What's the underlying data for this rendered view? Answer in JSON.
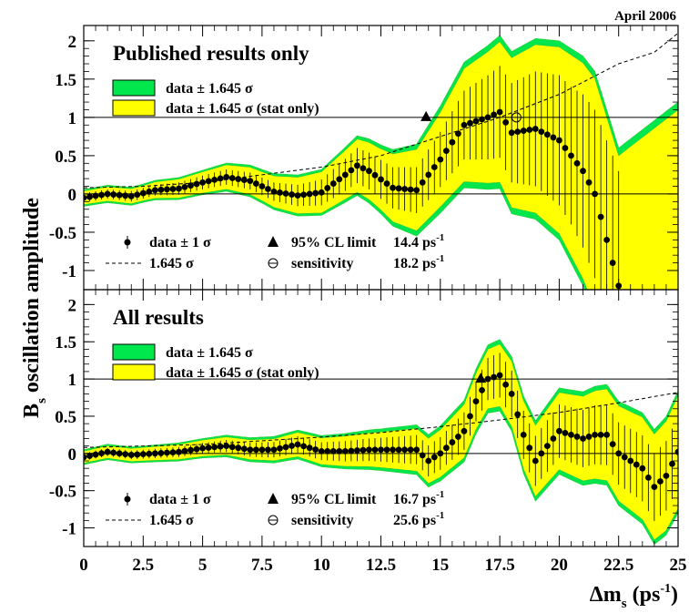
{
  "date_label": "April 2006",
  "y_axis_label": "B",
  "y_axis_label_sub": "s",
  "y_axis_label_rest": " oscillation amplitude",
  "x_axis_label": "Δm",
  "x_axis_label_sub": "s",
  "x_axis_label_unit": " (ps",
  "x_axis_label_sup": "-1",
  "x_axis_label_close": ")",
  "colors": {
    "band_total": "#00e64d",
    "band_stat": "#ffff00",
    "band_edge": "#33cc33",
    "points": "#000000"
  },
  "chart_data": [
    {
      "type": "line",
      "panel": "top",
      "title": "Published results only",
      "xlim": [
        0,
        25
      ],
      "ylim": [
        -1.25,
        2.2
      ],
      "x_ticks": [
        "0",
        "2.5",
        "5",
        "7.5",
        "10",
        "12.5",
        "15",
        "17.5",
        "20",
        "22.5",
        "25"
      ],
      "y_ticks": [
        "-1",
        "-0.5",
        "0",
        "0.5",
        "1",
        "1.5",
        "2"
      ],
      "reference_lines": [
        0,
        1
      ],
      "legend_bands": [
        {
          "name": "data ± 1.645 σ",
          "color": "#00e64d"
        },
        {
          "name": "data ± 1.645 σ (stat only)",
          "color": "#ffff00"
        }
      ],
      "legend_bottom": {
        "data_label": "data ± 1 σ",
        "dashed_label": "1.645 σ",
        "limit_label": "95% CL limit",
        "limit_value": "14.4 ps",
        "sensitivity_label": "sensitivity",
        "sensitivity_value": "18.2 ps",
        "unit_sup": "-1"
      },
      "limit_marker": {
        "x": 14.4,
        "y": 1.0
      },
      "sensitivity_marker": {
        "x": 18.2,
        "y": 1.0
      },
      "amplitude": {
        "x": [
          0,
          1,
          2,
          3,
          4,
          5,
          6,
          7,
          8,
          9,
          10,
          11,
          11.5,
          12,
          13,
          14,
          15,
          16,
          17,
          17.5,
          18,
          19,
          20,
          20.5,
          21,
          21.5,
          22,
          22.5
        ],
        "y": [
          -0.05,
          0.0,
          -0.03,
          0.05,
          0.07,
          0.15,
          0.22,
          0.17,
          0.03,
          -0.02,
          0.02,
          0.25,
          0.37,
          0.3,
          0.08,
          0.05,
          0.45,
          0.9,
          1.0,
          1.07,
          0.8,
          0.85,
          0.7,
          0.5,
          0.3,
          0.0,
          -0.6,
          -1.2
        ]
      },
      "errors": {
        "x": [
          0,
          1,
          2,
          3,
          4,
          5,
          6,
          7,
          8,
          9,
          10,
          11,
          11.5,
          12,
          13,
          14,
          15,
          16,
          17,
          17.5,
          18,
          19,
          20,
          20.5,
          21,
          21.5,
          22,
          22.5
        ],
        "err": [
          0.06,
          0.06,
          0.07,
          0.07,
          0.08,
          0.09,
          0.1,
          0.11,
          0.12,
          0.14,
          0.17,
          0.21,
          0.23,
          0.24,
          0.27,
          0.3,
          0.36,
          0.45,
          0.55,
          0.6,
          0.65,
          0.75,
          0.85,
          0.9,
          1.0,
          1.1,
          1.3,
          1.5
        ]
      },
      "band_total_halfwidth": {
        "x": [
          0,
          2.5,
          5,
          7.5,
          10,
          12.5,
          15,
          17.5,
          20,
          22.5,
          25
        ],
        "y": [
          0.11,
          0.12,
          0.16,
          0.22,
          0.3,
          0.45,
          0.7,
          1.0,
          1.3,
          1.8,
          2.4
        ]
      },
      "band_stat_halfwidth": {
        "x": [
          0,
          2.5,
          5,
          7.5,
          10,
          12.5,
          15,
          17.5,
          20,
          22.5,
          25
        ],
        "y": [
          0.09,
          0.1,
          0.14,
          0.19,
          0.27,
          0.4,
          0.62,
          0.92,
          1.22,
          1.7,
          2.3
        ]
      },
      "sensitivity_curve": {
        "x": [
          0,
          2.5,
          5,
          7.5,
          10,
          12.5,
          15,
          17.5,
          20,
          22.5,
          24,
          25
        ],
        "y": [
          0.08,
          0.1,
          0.15,
          0.25,
          0.35,
          0.5,
          0.75,
          1.0,
          1.3,
          1.7,
          1.85,
          2.1
        ]
      }
    },
    {
      "type": "line",
      "panel": "bottom",
      "title": "All results",
      "xlim": [
        0,
        25
      ],
      "ylim": [
        -1.25,
        2.2
      ],
      "x_ticks": [
        "0",
        "2.5",
        "5",
        "7.5",
        "10",
        "12.5",
        "15",
        "17.5",
        "20",
        "22.5",
        "25"
      ],
      "y_ticks": [
        "-1",
        "-0.5",
        "0",
        "0.5",
        "1",
        "1.5",
        "2"
      ],
      "reference_lines": [
        0,
        1
      ],
      "legend_bands": [
        {
          "name": "data ± 1.645 σ",
          "color": "#00e64d"
        },
        {
          "name": "data ± 1.645 σ (stat only)",
          "color": "#ffff00"
        }
      ],
      "legend_bottom": {
        "data_label": "data ± 1 σ",
        "dashed_label": "1.645 σ",
        "limit_label": "95% CL limit",
        "limit_value": "16.7 ps",
        "sensitivity_label": "sensitivity",
        "sensitivity_value": "25.6 ps",
        "unit_sup": "-1"
      },
      "limit_marker": {
        "x": 16.7,
        "y": 1.0
      },
      "sensitivity_marker": null,
      "amplitude": {
        "x": [
          0,
          1,
          2,
          3,
          4,
          5,
          6,
          7,
          8,
          9,
          10,
          11,
          12,
          13,
          14,
          14.5,
          15,
          16,
          16.5,
          17,
          17.5,
          18,
          18.5,
          19,
          19.5,
          20,
          20.5,
          21,
          21.5,
          22,
          22.5,
          23,
          23.5,
          24,
          24.5,
          25
        ],
        "y": [
          -0.05,
          0.02,
          -0.02,
          0.0,
          0.02,
          0.07,
          0.1,
          0.05,
          0.05,
          0.12,
          0.03,
          0.03,
          0.05,
          0.05,
          0.05,
          -0.1,
          0.0,
          0.3,
          0.7,
          1.0,
          1.05,
          0.8,
          0.25,
          -0.1,
          0.1,
          0.3,
          0.25,
          0.2,
          0.25,
          0.25,
          0.0,
          -0.1,
          -0.2,
          -0.45,
          -0.3,
          0.02
        ]
      },
      "errors": {
        "x": [
          0,
          2.5,
          5,
          7.5,
          10,
          12.5,
          15,
          17.5,
          20,
          22.5,
          25
        ],
        "err": [
          0.05,
          0.06,
          0.07,
          0.1,
          0.12,
          0.16,
          0.22,
          0.3,
          0.36,
          0.42,
          0.48
        ]
      },
      "band_total_halfwidth": {
        "x": [
          0,
          2.5,
          5,
          7.5,
          10,
          12.5,
          15,
          17.5,
          20,
          22.5,
          25
        ],
        "y": [
          0.1,
          0.11,
          0.13,
          0.17,
          0.21,
          0.28,
          0.37,
          0.48,
          0.58,
          0.7,
          0.82
        ]
      },
      "band_stat_halfwidth": {
        "x": [
          0,
          2.5,
          5,
          7.5,
          10,
          12.5,
          15,
          17.5,
          20,
          22.5,
          25
        ],
        "y": [
          0.08,
          0.09,
          0.11,
          0.14,
          0.18,
          0.24,
          0.32,
          0.42,
          0.52,
          0.64,
          0.76
        ]
      },
      "sensitivity_curve": {
        "x": [
          0,
          2.5,
          5,
          7.5,
          10,
          12.5,
          15,
          17.5,
          20,
          22.5,
          25
        ],
        "y": [
          0.08,
          0.1,
          0.12,
          0.17,
          0.22,
          0.28,
          0.36,
          0.45,
          0.55,
          0.68,
          0.82
        ]
      }
    }
  ]
}
